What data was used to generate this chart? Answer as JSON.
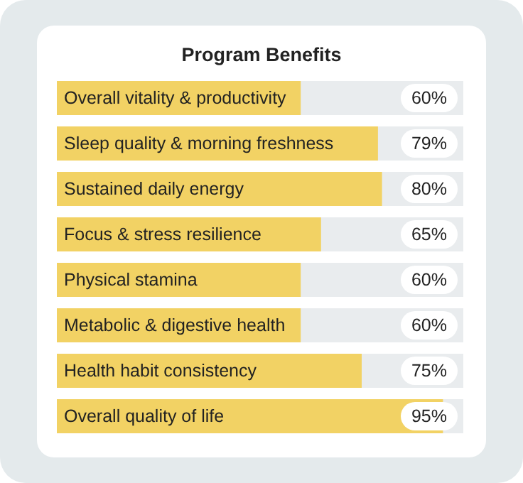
{
  "chart_data": {
    "type": "bar",
    "title": "Program Benefits",
    "orientation": "horizontal",
    "categories": [
      "Overall vitality & productivity",
      "Sleep quality & morning freshness",
      "Sustained daily energy",
      "Focus & stress resilience",
      "Physical stamina",
      "Metabolic & digestive health",
      "Health habit consistency",
      "Overall quality of life"
    ],
    "values": [
      60,
      79,
      80,
      65,
      60,
      60,
      75,
      95
    ],
    "value_labels": [
      "60%",
      "79%",
      "80%",
      "65%",
      "60%",
      "60%",
      "75%",
      "95%"
    ],
    "color": "#f2d264",
    "xlim": [
      0,
      100
    ],
    "tick_labels": false
  }
}
